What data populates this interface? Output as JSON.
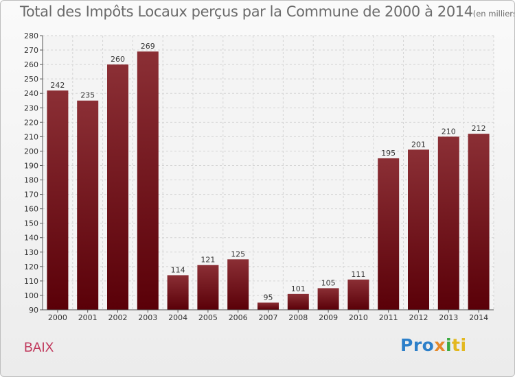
{
  "header": {
    "title": "Total des Impôts Locaux perçus par la Commune de 2000 à 2014",
    "unit": "(en milliers d'€)"
  },
  "footer": {
    "commune": "BAIX",
    "logo": [
      "Pro",
      "x",
      "i",
      "ti"
    ]
  },
  "colors": {
    "bar_top": "#8b2f35",
    "bar_bottom": "#5a0008",
    "grid": "#d4d4d4",
    "axis": "#555555"
  },
  "chart_data": {
    "type": "bar",
    "title": "Total des Impôts Locaux perçus par la Commune de 2000 à 2014",
    "xlabel": "",
    "ylabel": "(en milliers d'€)",
    "categories": [
      "2000",
      "2001",
      "2002",
      "2003",
      "2004",
      "2005",
      "2006",
      "2007",
      "2008",
      "2009",
      "2010",
      "2011",
      "2012",
      "2013",
      "2014"
    ],
    "values": [
      242,
      235,
      260,
      269,
      114,
      121,
      125,
      95,
      101,
      105,
      111,
      195,
      201,
      210,
      212
    ],
    "ylim": [
      90,
      280
    ],
    "yticks": [
      90,
      100,
      110,
      120,
      130,
      140,
      150,
      160,
      170,
      180,
      190,
      200,
      210,
      220,
      230,
      240,
      250,
      260,
      270,
      280
    ],
    "grid": true
  }
}
